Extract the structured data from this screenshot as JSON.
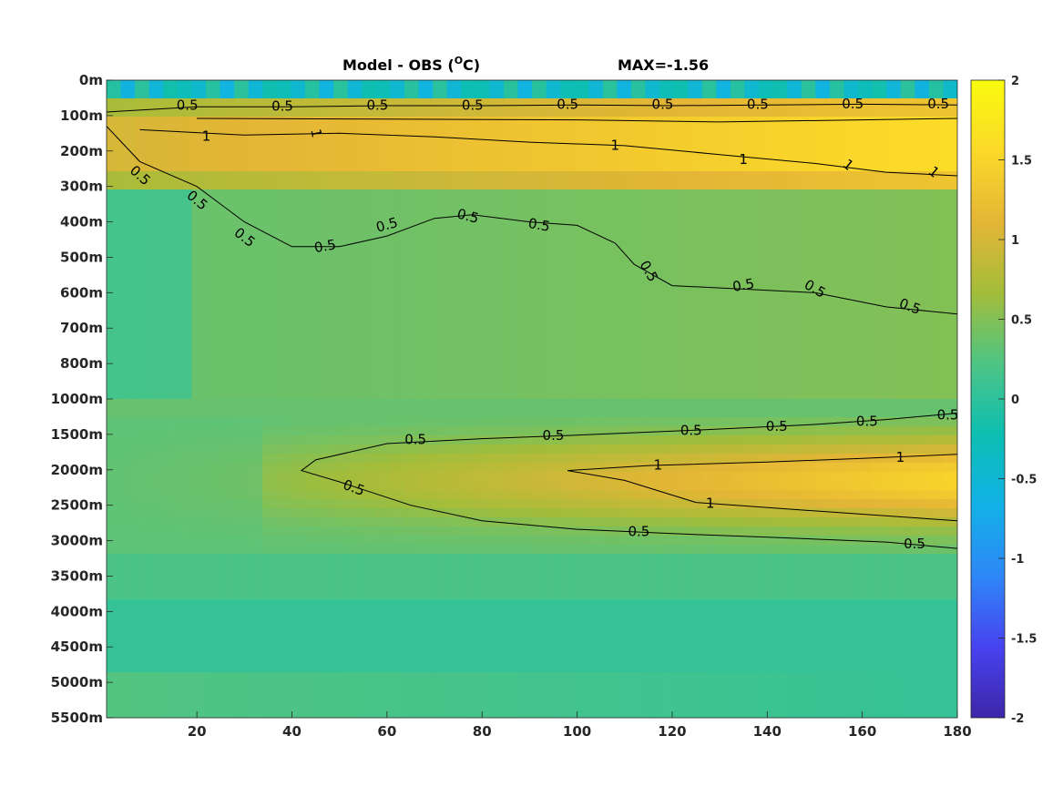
{
  "chart_data": {
    "type": "heatmap",
    "title": "Model - OBS (",
    "title_unit": "O",
    "title_unit_suffix": "C)",
    "max_label": "MAX=-1.56",
    "xlim": [
      1,
      180
    ],
    "x_ticks": [
      20,
      40,
      60,
      80,
      100,
      120,
      140,
      160,
      180
    ],
    "x_tick_labels": [
      "20",
      "40",
      "60",
      "80",
      "100",
      "120",
      "140",
      "160",
      "180"
    ],
    "y_tick_labels": [
      "0m",
      "100m",
      "200m",
      "300m",
      "400m",
      "500m",
      "600m",
      "700m",
      "800m",
      "1000m",
      "1500m",
      "2000m",
      "2500m",
      "3000m",
      "3500m",
      "4000m",
      "4500m",
      "5000m",
      "5500m"
    ],
    "colorbar": {
      "limits": [
        -2,
        2
      ],
      "ticks": [
        2,
        1.5,
        1,
        0.5,
        0,
        -0.5,
        -1,
        -1.5,
        -2
      ],
      "tick_labels": [
        "2",
        "1.5",
        "1",
        "0.5",
        "0",
        "-0.5",
        "-1",
        "-1.5",
        "-2"
      ],
      "colormap": [
        "#3e26a8",
        "#4743f0",
        "#2e87f7",
        "#12b1e7",
        "#0cbfb2",
        "#4ec484",
        "#a3bd3a",
        "#e5b536",
        "#fbd929",
        "#f9fb0e"
      ]
    },
    "contour_levels": [
      0.5,
      1
    ],
    "contours": [
      {
        "level": "0.5",
        "points": [
          [
            1,
            130
          ],
          [
            8,
            230
          ],
          [
            20,
            300
          ],
          [
            30,
            400
          ],
          [
            40,
            470
          ],
          [
            50,
            470
          ],
          [
            60,
            440
          ],
          [
            70,
            390
          ],
          [
            78,
            380
          ],
          [
            90,
            400
          ],
          [
            100,
            410
          ],
          [
            108,
            460
          ],
          [
            112,
            520
          ],
          [
            120,
            580
          ],
          [
            135,
            590
          ],
          [
            150,
            600
          ],
          [
            165,
            640
          ],
          [
            180,
            660
          ]
        ]
      },
      {
        "level": "0.5",
        "points": [
          [
            1,
            90
          ],
          [
            20,
            75
          ],
          [
            40,
            75
          ],
          [
            60,
            72
          ],
          [
            80,
            72
          ],
          [
            100,
            70
          ],
          [
            120,
            72
          ],
          [
            140,
            70
          ],
          [
            160,
            68
          ],
          [
            180,
            70
          ]
        ]
      },
      {
        "level": "1",
        "points": [
          [
            8,
            140
          ],
          [
            30,
            155
          ],
          [
            50,
            150
          ],
          [
            70,
            160
          ],
          [
            90,
            175
          ],
          [
            110,
            185
          ],
          [
            130,
            210
          ],
          [
            150,
            235
          ],
          [
            165,
            260
          ],
          [
            180,
            270
          ]
        ]
      },
      {
        "level": "1",
        "points": [
          [
            20,
            108
          ],
          [
            60,
            110
          ],
          [
            100,
            112
          ],
          [
            130,
            118
          ],
          [
            160,
            112
          ],
          [
            180,
            108
          ]
        ]
      },
      {
        "level": "0.5",
        "points": [
          [
            180,
            1200
          ],
          [
            165,
            1290
          ],
          [
            150,
            1360
          ],
          [
            125,
            1440
          ],
          [
            100,
            1510
          ],
          [
            80,
            1560
          ],
          [
            60,
            1630
          ],
          [
            45,
            1860
          ],
          [
            42,
            2010
          ],
          [
            50,
            2170
          ],
          [
            65,
            2500
          ],
          [
            80,
            2720
          ],
          [
            100,
            2840
          ],
          [
            120,
            2900
          ],
          [
            140,
            2950
          ],
          [
            165,
            3020
          ],
          [
            180,
            3110
          ]
        ]
      },
      {
        "level": "1",
        "points": [
          [
            180,
            1780
          ],
          [
            160,
            1840
          ],
          [
            140,
            1890
          ],
          [
            115,
            1940
          ],
          [
            98,
            2010
          ],
          [
            110,
            2150
          ],
          [
            125,
            2460
          ],
          [
            150,
            2580
          ],
          [
            180,
            2720
          ]
        ]
      }
    ],
    "contour_labels": [
      {
        "text": "0.5",
        "x": 8,
        "y": 270,
        "rot": 42
      },
      {
        "text": "0.5",
        "x": 20,
        "y": 340,
        "rot": 40
      },
      {
        "text": "0.5",
        "x": 30,
        "y": 445,
        "rot": 38
      },
      {
        "text": "0.5",
        "x": 47,
        "y": 470,
        "rot": -10
      },
      {
        "text": "0.5",
        "x": 60,
        "y": 410,
        "rot": -15
      },
      {
        "text": "0.5",
        "x": 77,
        "y": 385,
        "rot": 15
      },
      {
        "text": "0.5",
        "x": 92,
        "y": 410,
        "rot": 10
      },
      {
        "text": "0.5",
        "x": 115,
        "y": 540,
        "rot": 60
      },
      {
        "text": "0.5",
        "x": 135,
        "y": 580,
        "rot": -10
      },
      {
        "text": "0.5",
        "x": 150,
        "y": 590,
        "rot": 30
      },
      {
        "text": "0.5",
        "x": 170,
        "y": 640,
        "rot": 20
      },
      {
        "text": "0.5",
        "x": 18,
        "y": 72,
        "rot": 0
      },
      {
        "text": "0.5",
        "x": 38,
        "y": 75,
        "rot": 0
      },
      {
        "text": "0.5",
        "x": 58,
        "y": 72,
        "rot": 0
      },
      {
        "text": "0.5",
        "x": 78,
        "y": 72,
        "rot": 0
      },
      {
        "text": "0.5",
        "x": 98,
        "y": 70,
        "rot": 0
      },
      {
        "text": "0.5",
        "x": 118,
        "y": 70,
        "rot": 0
      },
      {
        "text": "0.5",
        "x": 138,
        "y": 70,
        "rot": 0
      },
      {
        "text": "0.5",
        "x": 158,
        "y": 68,
        "rot": 0
      },
      {
        "text": "0.5",
        "x": 176,
        "y": 68,
        "rot": 0
      },
      {
        "text": "1",
        "x": 22,
        "y": 160,
        "rot": 0
      },
      {
        "text": "1",
        "x": 45,
        "y": 150,
        "rot": 80
      },
      {
        "text": "1",
        "x": 108,
        "y": 185,
        "rot": 0
      },
      {
        "text": "1",
        "x": 135,
        "y": 225,
        "rot": 0
      },
      {
        "text": "1",
        "x": 157,
        "y": 240,
        "rot": 40
      },
      {
        "text": "1",
        "x": 175,
        "y": 260,
        "rot": 40
      },
      {
        "text": "0.5",
        "x": 66,
        "y": 1580,
        "rot": 0
      },
      {
        "text": "0.5",
        "x": 95,
        "y": 1520,
        "rot": 0
      },
      {
        "text": "0.5",
        "x": 124,
        "y": 1450,
        "rot": 0
      },
      {
        "text": "0.5",
        "x": 142,
        "y": 1390,
        "rot": 0
      },
      {
        "text": "0.5",
        "x": 161,
        "y": 1320,
        "rot": 0
      },
      {
        "text": "0.5",
        "x": 178,
        "y": 1230,
        "rot": 0
      },
      {
        "text": "0.5",
        "x": 53,
        "y": 2260,
        "rot": 20
      },
      {
        "text": "0.5",
        "x": 113,
        "y": 2880,
        "rot": 0
      },
      {
        "text": "0.5",
        "x": 171,
        "y": 3050,
        "rot": 0
      },
      {
        "text": "1",
        "x": 117,
        "y": 1940,
        "rot": 0
      },
      {
        "text": "1",
        "x": 128,
        "y": 2480,
        "rot": 0
      },
      {
        "text": "1",
        "x": 168,
        "y": 1830,
        "rot": 0
      }
    ]
  }
}
